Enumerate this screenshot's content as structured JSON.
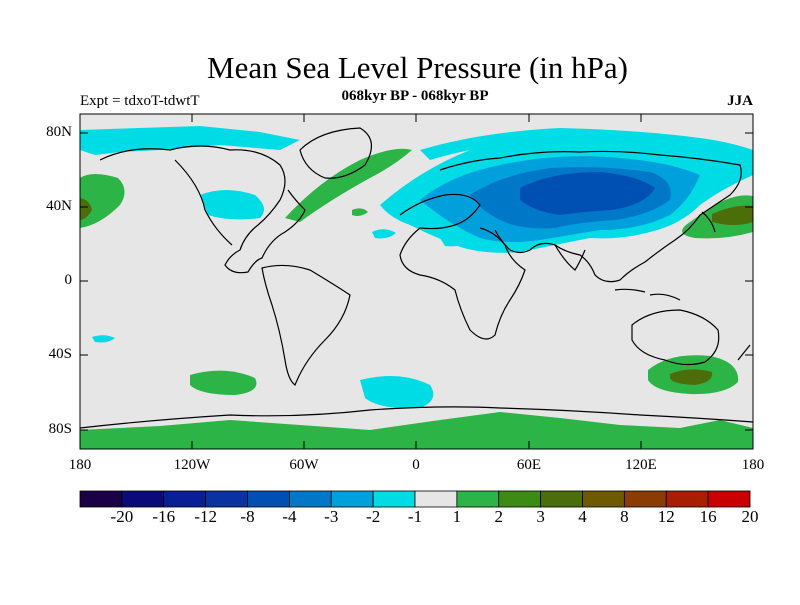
{
  "title": "Mean Sea Level Pressure (in hPa)",
  "subtitle": "068kyr BP - 068kyr BP",
  "experiment": "Expt = tdxoT-tdwtT",
  "season": "JJA",
  "lat_labels": [
    "80N",
    "40N",
    "0",
    "40S",
    "80S"
  ],
  "lon_labels": [
    "180",
    "120W",
    "60W",
    "0",
    "60E",
    "120E",
    "180"
  ],
  "colorbar": {
    "labels": [
      "-20",
      "-16",
      "-12",
      "-8",
      "-4",
      "-3",
      "-2",
      "-1",
      "1",
      "2",
      "3",
      "4",
      "8",
      "12",
      "16",
      "20"
    ],
    "colors": [
      "#1a0046",
      "#0a0a78",
      "#0a1e96",
      "#0a32a0",
      "#0050b4",
      "#0078c8",
      "#00a0dc",
      "#00dce6",
      "#e6e6e6",
      "#2db446",
      "#3c8c14",
      "#4b6e0a",
      "#6e5a00",
      "#8c3c00",
      "#aa1e00",
      "#c80000"
    ]
  },
  "colors": {
    "land_outline": "#000000",
    "background": "#e6e6e6",
    "light_cyan": "#00dce6",
    "cyan_blue": "#00a0dc",
    "mid_blue": "#0078c8",
    "deep_blue": "#0050b4",
    "green": "#2db446",
    "olive": "#4b6e0a"
  }
}
